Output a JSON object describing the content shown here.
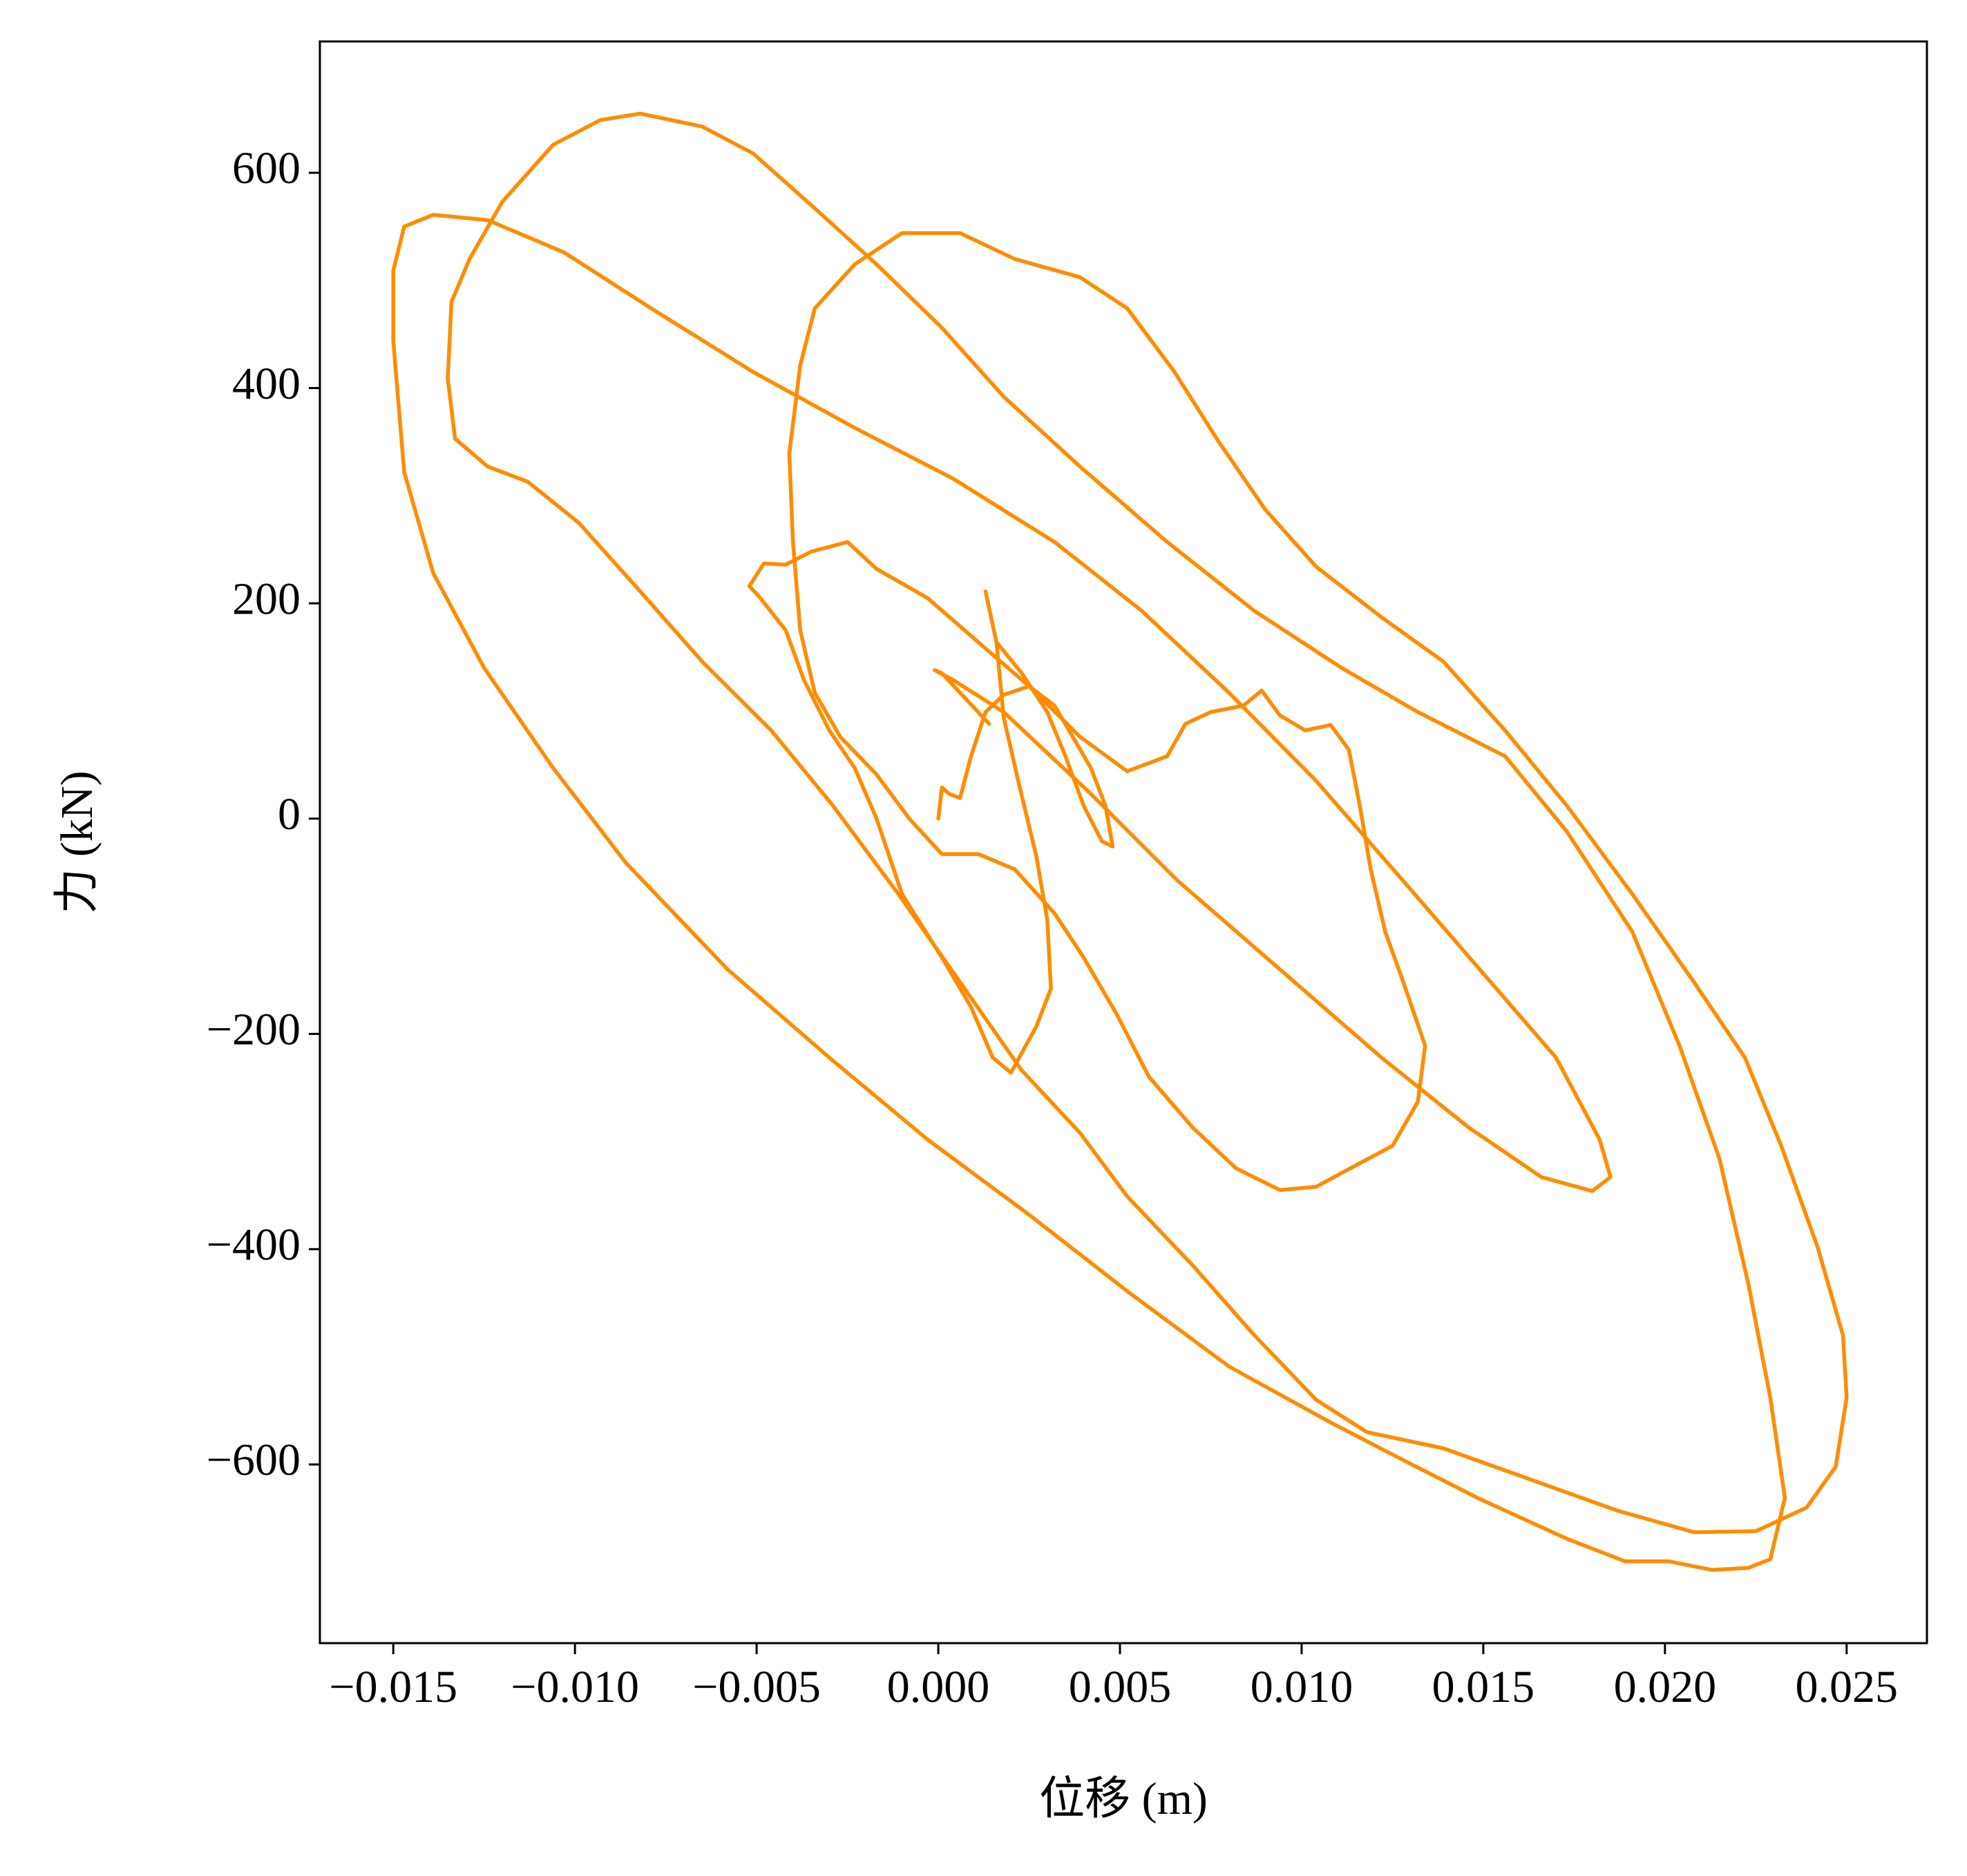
{
  "chart_data": {
    "type": "line",
    "x_label": "位移 (m)",
    "y_label": "力 (kN)",
    "xlim": [
      -0.01702,
      0.02721
    ],
    "ylim": [
      -766,
      722
    ],
    "xticks": [
      {
        "value": -0.015,
        "label": "−0.015"
      },
      {
        "value": -0.01,
        "label": "−0.010"
      },
      {
        "value": -0.005,
        "label": "−0.005"
      },
      {
        "value": 0,
        "label": "0.000"
      },
      {
        "value": 0.005,
        "label": "0.005"
      },
      {
        "value": 0.01,
        "label": "0.010"
      },
      {
        "value": 0.015,
        "label": "0.015"
      },
      {
        "value": 0.02,
        "label": "0.020"
      },
      {
        "value": 0.025,
        "label": "0.025"
      }
    ],
    "yticks": [
      {
        "value": -600,
        "label": "−600"
      },
      {
        "value": -400,
        "label": "−400"
      },
      {
        "value": -200,
        "label": "−200"
      },
      0,
      200,
      400,
      600
    ],
    "grid": false,
    "x": [
      0,
      0.0001,
      0.0003,
      0.0006,
      0.0009,
      0.0013,
      0.0018,
      0.0025,
      0.0032,
      0.0037,
      0.0042,
      0.0046,
      0.0048,
      0.0045,
      0.004,
      0.0035,
      0.003,
      0.0023,
      0.0016,
      0.0013,
      0.0016,
      0.0018,
      0.0022,
      0.0027,
      0.003,
      0.0031,
      0.0027,
      0.002,
      0.0015,
      0.0009,
      0.0001,
      -0.001,
      -0.0017,
      -0.0023,
      -0.003,
      -0.0037,
      -0.0042,
      -0.0049,
      -0.0052,
      -0.0048,
      -0.0042,
      -0.0035,
      -0.0025,
      -0.0017,
      -0.0003,
      0.0011,
      0.0025,
      0.0039,
      0.0052,
      0.0063,
      0.0068,
      0.0075,
      0.0084,
      0.0089,
      0.0094,
      0.0101,
      0.0108,
      0.0113,
      0.0116,
      0.0119,
      0.0123,
      0.0128,
      0.0134,
      0.0132,
      0.0125,
      0.0115,
      0.0104,
      0.0094,
      0.0082,
      0.007,
      0.0058,
      0.0049,
      0.004,
      0.0032,
      0.0021,
      0.0011,
      0.0001,
      -0.0008,
      -0.0017,
      -0.0027,
      -0.0034,
      -0.0038,
      -0.004,
      -0.0041,
      -0.0038,
      -0.0034,
      -0.0023,
      -0.001,
      0.0006,
      0.0021,
      0.0039,
      0.0052,
      0.0065,
      0.0077,
      0.009,
      0.0104,
      0.0122,
      0.0139,
      0.0156,
      0.0173,
      0.0191,
      0.0208,
      0.0222,
      0.0232,
      0.0242,
      0.0249,
      0.025,
      0.0247,
      0.0239,
      0.0225,
      0.0208,
      0.0187,
      0.0163,
      0.0139,
      0.0118,
      0.0104,
      0.0087,
      0.007,
      0.0052,
      0.0039,
      0.0023,
      0.0006,
      -0.0011,
      -0.0029,
      -0.0046,
      -0.0065,
      -0.0082,
      -0.0099,
      -0.0113,
      -0.0124,
      -0.0133,
      -0.0135,
      -0.0134,
      -0.0129,
      -0.012,
      -0.0106,
      -0.0093,
      -0.0082,
      -0.0065,
      -0.0051,
      -0.0034,
      -0.0017,
      0.0001,
      0.0018,
      0.0039,
      0.0063,
      0.0087,
      0.0111,
      0.0132,
      0.0156,
      0.0173,
      0.0191,
      0.0204,
      0.0215,
      0.0223,
      0.0229,
      0.0233,
      0.0229,
      0.0223,
      0.0213,
      0.0201,
      0.0189,
      0.0173,
      0.0149,
      0.0128,
      0.0108,
      0.008,
      0.0052,
      0.0025,
      -0.0003,
      -0.003,
      -0.0058,
      -0.0086,
      -0.0106,
      -0.0125,
      -0.0139,
      -0.0147,
      -0.015,
      -0.015,
      -0.0147,
      -0.0139,
      -0.0124,
      -0.0103,
      -0.0079,
      -0.0051,
      -0.0023,
      0.0004,
      0.0032,
      0.0056,
      0.008,
      0.0104,
      0.0128,
      0.0149,
      0.017,
      0.0182,
      0.0185,
      0.018,
      0.0166,
      0.0146,
      0.0122,
      0.0094,
      0.0066,
      0.0042,
      0.0018,
      0.0004,
      -0.0001,
      0.0001,
      0.0014
    ],
    "series": [
      {
        "color": "#ff8c00",
        "values": [
          0,
          29,
          23,
          19,
          58,
          99,
          115,
          123,
          105,
          76,
          47,
          12,
          -26,
          -21,
          12,
          58,
          99,
          135,
          164,
          211,
          164,
          94,
          35,
          -35,
          -94,
          -158,
          -193,
          -236,
          -222,
          -175,
          -129,
          -70,
          0,
          47,
          82,
          129,
          175,
          205,
          216,
          237,
          236,
          248,
          257,
          232,
          205,
          164,
          123,
          76,
          44,
          58,
          88,
          99,
          105,
          119,
          96,
          82,
          87,
          64,
          12,
          -47,
          -105,
          -152,
          -211,
          -263,
          -304,
          -322,
          -342,
          -345,
          -325,
          -287,
          -240,
          -181,
          -129,
          -88,
          -47,
          -33,
          -33,
          0,
          41,
          76,
          117,
          175,
          257,
          339,
          421,
          474,
          515,
          544,
          544,
          520,
          503,
          474,
          415,
          351,
          287,
          234,
          187,
          146,
          82,
          12,
          -70,
          -152,
          -222,
          -304,
          -398,
          -480,
          -538,
          -602,
          -640,
          -662,
          -663,
          -643,
          -614,
          -585,
          -570,
          -540,
          -480,
          -415,
          -351,
          -292,
          -234,
          -152,
          -70,
          12,
          82,
          146,
          211,
          275,
          313,
          327,
          353,
          409,
          480,
          520,
          573,
          626,
          649,
          655,
          643,
          618,
          567,
          515,
          456,
          392,
          327,
          257,
          193,
          140,
          99,
          58,
          -12,
          -105,
          -211,
          -316,
          -433,
          -538,
          -631,
          -688,
          -696,
          -698,
          -690,
          -690,
          -669,
          -632,
          -596,
          -561,
          -509,
          -439,
          -368,
          -298,
          -222,
          -140,
          -41,
          47,
          140,
          228,
          322,
          444,
          509,
          550,
          561,
          556,
          526,
          474,
          415,
          363,
          316,
          257,
          193,
          117,
          35,
          -58,
          -140,
          -222,
          -298,
          -333,
          -346,
          -333,
          -287,
          -222,
          -140,
          -58,
          23,
          99,
          129,
          138,
          135,
          88
        ]
      }
    ]
  }
}
